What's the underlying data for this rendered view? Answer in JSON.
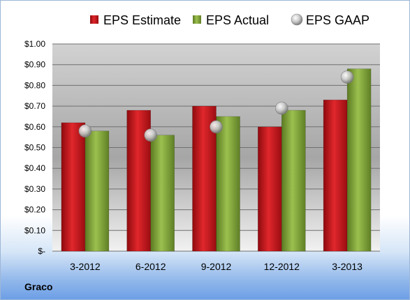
{
  "company": "Graco",
  "chart_data": {
    "type": "bar",
    "categories": [
      "3-2012",
      "6-2012",
      "9-2012",
      "12-2012",
      "3-2013"
    ],
    "series": [
      {
        "name": "EPS Estimate",
        "type": "bar",
        "color": "#c8141a",
        "values": [
          0.62,
          0.68,
          0.7,
          0.6,
          0.73
        ]
      },
      {
        "name": "EPS Actual",
        "type": "bar",
        "color": "#7fa23a",
        "values": [
          0.58,
          0.56,
          0.65,
          0.68,
          0.88
        ]
      },
      {
        "name": "EPS GAAP",
        "type": "scatter",
        "color": "#b4b4b4",
        "values": [
          0.58,
          0.56,
          0.6,
          0.69,
          0.84
        ]
      }
    ],
    "yticks": [
      "$-",
      "$0.10",
      "$0.20",
      "$0.30",
      "$0.40",
      "$0.50",
      "$0.60",
      "$0.70",
      "$0.80",
      "$0.90",
      "$1.00"
    ],
    "ylim": [
      0,
      1.0
    ],
    "grid": true,
    "legend": "top"
  }
}
